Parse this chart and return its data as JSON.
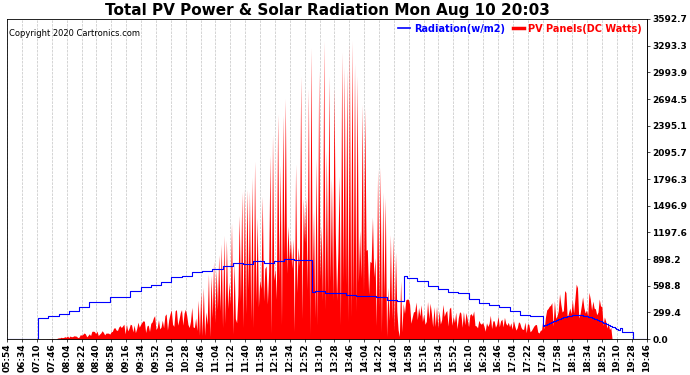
{
  "title": "Total PV Power & Solar Radiation Mon Aug 10 20:03",
  "copyright": "Copyright 2020 Cartronics.com",
  "legend_radiation": "Radiation(w/m2)",
  "legend_pv": "PV Panels(DC Watts)",
  "ylabel_right_ticks": [
    0.0,
    299.4,
    598.8,
    898.2,
    1197.6,
    1496.9,
    1796.3,
    2095.7,
    2395.1,
    2694.5,
    2993.9,
    3293.3,
    3592.7
  ],
  "ymax": 3592.7,
  "ymin": 0.0,
  "bg_color": "#ffffff",
  "plot_bg_color": "#ffffff",
  "grid_color": "#aaaaaa",
  "pv_color": "#ff0000",
  "radiation_color": "#0000ff",
  "title_fontsize": 11,
  "tick_fontsize": 6.5,
  "n_points": 500,
  "tick_labels": [
    "05:54",
    "06:34",
    "07:10",
    "07:46",
    "08:04",
    "08:22",
    "08:40",
    "08:58",
    "09:16",
    "09:34",
    "09:52",
    "10:10",
    "10:28",
    "10:46",
    "11:04",
    "11:22",
    "11:40",
    "11:58",
    "12:16",
    "12:34",
    "12:52",
    "13:10",
    "13:28",
    "13:46",
    "14:04",
    "14:22",
    "14:40",
    "14:58",
    "15:16",
    "15:34",
    "15:52",
    "16:10",
    "16:28",
    "16:46",
    "17:04",
    "17:22",
    "17:40",
    "17:58",
    "18:16",
    "18:34",
    "18:52",
    "19:10",
    "19:28",
    "19:46"
  ]
}
